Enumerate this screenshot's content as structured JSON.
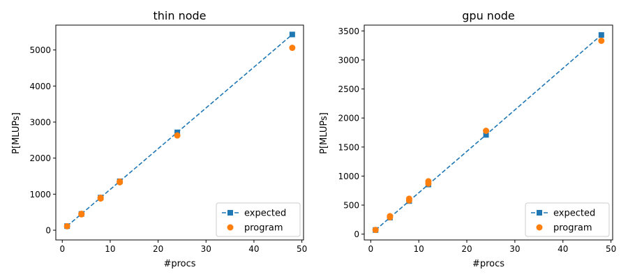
{
  "chart_data": [
    {
      "type": "line",
      "title": "thin node",
      "xlabel": "#procs",
      "ylabel": "P[MLUPs]",
      "xlim": [
        -1.35,
        50.35
      ],
      "ylim": [
        -270,
        5690
      ],
      "xticks": [
        0,
        10,
        20,
        30,
        40,
        50
      ],
      "yticks": [
        0,
        1000,
        2000,
        3000,
        4000,
        5000
      ],
      "grid": false,
      "legend": "bottom-right",
      "series": [
        {
          "name": "expected",
          "style": "dashed-line-square-markers",
          "color": "#1f77b4",
          "x": [
            1,
            4,
            8,
            12,
            24,
            48
          ],
          "y": [
            113,
            452,
            905,
            1357,
            2714,
            5430
          ]
        },
        {
          "name": "program",
          "style": "circle-markers",
          "color": "#ff7f0e",
          "x": [
            1,
            4,
            4,
            8,
            8,
            12,
            12,
            24,
            48
          ],
          "y": [
            110,
            440,
            455,
            880,
            900,
            1330,
            1350,
            2630,
            5060
          ]
        }
      ]
    },
    {
      "type": "line",
      "title": "gpu node",
      "xlabel": "#procs",
      "ylabel": "P[MLUPs]",
      "xlim": [
        -1.35,
        50.35
      ],
      "ylim": [
        -100,
        3600
      ],
      "xticks": [
        0,
        10,
        20,
        30,
        40,
        50
      ],
      "yticks": [
        0,
        500,
        1000,
        1500,
        2000,
        2500,
        3000,
        3500
      ],
      "grid": false,
      "legend": "bottom-right",
      "series": [
        {
          "name": "expected",
          "style": "dashed-line-square-markers",
          "color": "#1f77b4",
          "x": [
            1,
            4,
            8,
            12,
            24,
            48
          ],
          "y": [
            71,
            285,
            570,
            855,
            1710,
            3430
          ]
        },
        {
          "name": "program",
          "style": "circle-markers",
          "color": "#ff7f0e",
          "x": [
            1,
            4,
            4,
            8,
            8,
            12,
            12,
            24,
            48
          ],
          "y": [
            72,
            290,
            310,
            580,
            610,
            870,
            910,
            1780,
            3330
          ]
        }
      ]
    }
  ]
}
